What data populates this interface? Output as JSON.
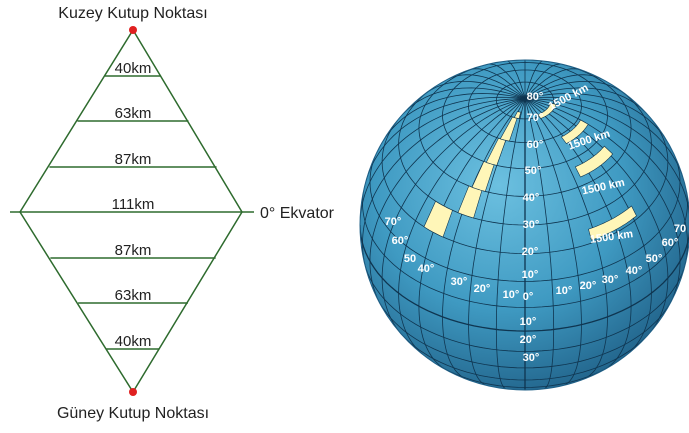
{
  "diagram": {
    "north_label": "Kuzey Kutup Noktası",
    "south_label": "Güney Kutup Noktası",
    "equator_label": "0° Ekvator",
    "distances": [
      "40km",
      "63km",
      "87km",
      "111km",
      "87km",
      "63km",
      "40km"
    ]
  },
  "globe": {
    "center_column": [
      "80°",
      "70°",
      "60°",
      "50°",
      "40°",
      "30°",
      "20°",
      "10°",
      "0°",
      "10°",
      "20°",
      "30°"
    ],
    "left_labels": [
      "70°",
      "60°",
      "50",
      "40°",
      "30°",
      "20°",
      "10°"
    ],
    "right_labels": [
      "10°",
      "20°",
      "30°",
      "40°",
      "50°",
      "60°",
      "70"
    ],
    "band_labels": [
      "1500 km",
      "1500 km",
      "1500 km",
      "1500 km"
    ],
    "colors": {
      "ocean": "#3f9ac2",
      "ocean_dark": "#1f5f86",
      "grid": "#0f3550",
      "band": "#fff6b8"
    }
  },
  "colors": {
    "line": "#2e6b2e",
    "pole": "#e02020"
  }
}
